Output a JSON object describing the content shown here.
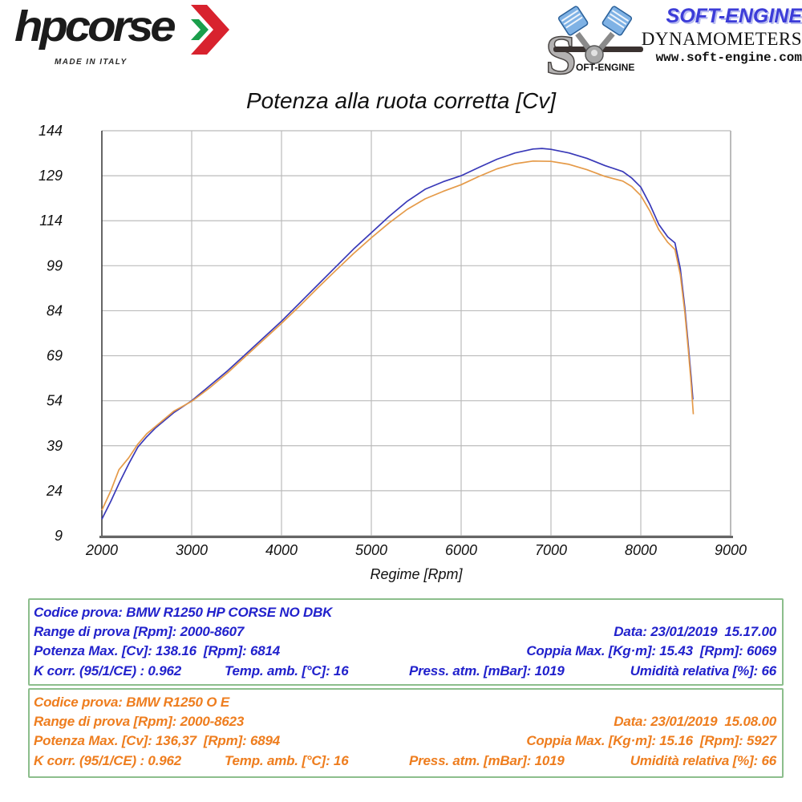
{
  "colors": {
    "curve_blue": "#3939b8",
    "curve_orange": "#e59a48",
    "text_blue": "#2121cc",
    "text_orange": "#ee7d1e",
    "table_border_green": "#8cbe8c",
    "grid": "#bbbbbb",
    "axis_left": "#333333",
    "axis_bottom": "#666666",
    "logo_red": "#d8222e",
    "logo_green": "#1a9e4b"
  },
  "header": {
    "hpcorse": {
      "brand": "hpcorse",
      "made_in": "MADE IN ITALY"
    },
    "softengine": {
      "wordmark": "SOFT-ENGINE",
      "subtitle": "DYNAMOMETERS",
      "website": "www.soft-engine.com",
      "s_logo_text": "OFT-ENGINE"
    }
  },
  "chart_data": {
    "type": "line",
    "title": "Potenza alla ruota corretta [Cv]",
    "xlabel": "Regime [Rpm]",
    "ylabel": "",
    "xlim": [
      2000,
      9000
    ],
    "ylim": [
      9,
      144
    ],
    "xticks": [
      2000,
      3000,
      4000,
      5000,
      6000,
      7000,
      8000,
      9000
    ],
    "yticks": [
      9,
      24,
      39,
      54,
      69,
      84,
      99,
      114,
      129,
      144
    ],
    "grid": true,
    "legend_position": "none",
    "series": [
      {
        "name": "BMW R1250 HP CORSE NO DBK",
        "color": "#3939b8",
        "points": [
          [
            2000,
            14.5
          ],
          [
            2100,
            20.5
          ],
          [
            2200,
            27
          ],
          [
            2300,
            33
          ],
          [
            2400,
            38.5
          ],
          [
            2500,
            42
          ],
          [
            2600,
            45
          ],
          [
            2800,
            50
          ],
          [
            3000,
            54
          ],
          [
            3200,
            59
          ],
          [
            3400,
            64
          ],
          [
            3600,
            69.5
          ],
          [
            3800,
            75
          ],
          [
            4000,
            80.5
          ],
          [
            4200,
            86.5
          ],
          [
            4400,
            92.5
          ],
          [
            4600,
            98.5
          ],
          [
            4800,
            104.5
          ],
          [
            5000,
            110
          ],
          [
            5200,
            115.5
          ],
          [
            5400,
            120.5
          ],
          [
            5600,
            124.5
          ],
          [
            5800,
            127
          ],
          [
            6000,
            129
          ],
          [
            6200,
            131.8
          ],
          [
            6400,
            134.5
          ],
          [
            6600,
            136.6
          ],
          [
            6800,
            137.9
          ],
          [
            6900,
            138.1
          ],
          [
            7000,
            137.8
          ],
          [
            7200,
            136.6
          ],
          [
            7400,
            134.8
          ],
          [
            7600,
            132.4
          ],
          [
            7800,
            130.4
          ],
          [
            7900,
            128.2
          ],
          [
            8000,
            125.2
          ],
          [
            8100,
            119.5
          ],
          [
            8200,
            112.8
          ],
          [
            8300,
            108.6
          ],
          [
            8380,
            106.6
          ],
          [
            8440,
            98
          ],
          [
            8490,
            85
          ],
          [
            8530,
            72
          ],
          [
            8560,
            62
          ],
          [
            8580,
            54.4
          ]
        ]
      },
      {
        "name": "BMW R1250 O E",
        "color": "#e59a48",
        "points": [
          [
            2000,
            17.5
          ],
          [
            2100,
            24
          ],
          [
            2190,
            31
          ],
          [
            2300,
            35
          ],
          [
            2400,
            39.5
          ],
          [
            2500,
            43
          ],
          [
            2600,
            45.5
          ],
          [
            2800,
            50.5
          ],
          [
            3000,
            53.8
          ],
          [
            3200,
            58.3
          ],
          [
            3400,
            63.3
          ],
          [
            3600,
            68.8
          ],
          [
            3800,
            74.3
          ],
          [
            4000,
            79.8
          ],
          [
            4200,
            85.5
          ],
          [
            4400,
            91.5
          ],
          [
            4600,
            97.3
          ],
          [
            4800,
            103
          ],
          [
            5000,
            108.3
          ],
          [
            5200,
            113.3
          ],
          [
            5400,
            117.8
          ],
          [
            5600,
            121.3
          ],
          [
            5800,
            123.8
          ],
          [
            6000,
            126
          ],
          [
            6200,
            128.8
          ],
          [
            6400,
            131.3
          ],
          [
            6600,
            133
          ],
          [
            6800,
            133.9
          ],
          [
            7000,
            133.8
          ],
          [
            7200,
            132.8
          ],
          [
            7400,
            131
          ],
          [
            7600,
            128.8
          ],
          [
            7800,
            127.2
          ],
          [
            7900,
            125.4
          ],
          [
            8000,
            122.4
          ],
          [
            8100,
            117.3
          ],
          [
            8200,
            111
          ],
          [
            8300,
            106.8
          ],
          [
            8380,
            104.4
          ],
          [
            8440,
            96
          ],
          [
            8490,
            83.5
          ],
          [
            8530,
            70.5
          ],
          [
            8560,
            60
          ],
          [
            8585,
            49.5
          ]
        ]
      }
    ]
  },
  "tables": {
    "blue": {
      "codice": "Codice prova: BMW R1250 HP CORSE NO DBK",
      "range": "Range di prova [Rpm]: 2000-8607",
      "data": "Data: 23/01/2019  15.17.00",
      "potenza": "Potenza Max. [Cv]: 138.16  [Rpm]: 6814",
      "coppia": "Coppia Max. [Kg·m]: 15.43  [Rpm]: 6069",
      "kcorr": "K corr. (95/1/CE) : 0.962",
      "temp": "Temp. amb. [°C]: 16",
      "press": "Press. atm. [mBar]: 1019",
      "umidita": "Umidità relativa [%]: 66"
    },
    "orange": {
      "codice": "Codice prova: BMW R1250 O E",
      "range": "Range di prova [Rpm]: 2000-8623",
      "data": "Data: 23/01/2019  15.08.00",
      "potenza": "Potenza Max. [Cv]: 136,37  [Rpm]: 6894",
      "coppia": "Coppia Max. [Kg·m]: 15.16  [Rpm]: 5927",
      "kcorr": "K corr. (95/1/CE) : 0.962",
      "temp": "Temp. amb. [°C]: 16",
      "press": "Press. atm. [mBar]: 1019",
      "umidita": "Umidità relativa [%]: 66"
    }
  }
}
